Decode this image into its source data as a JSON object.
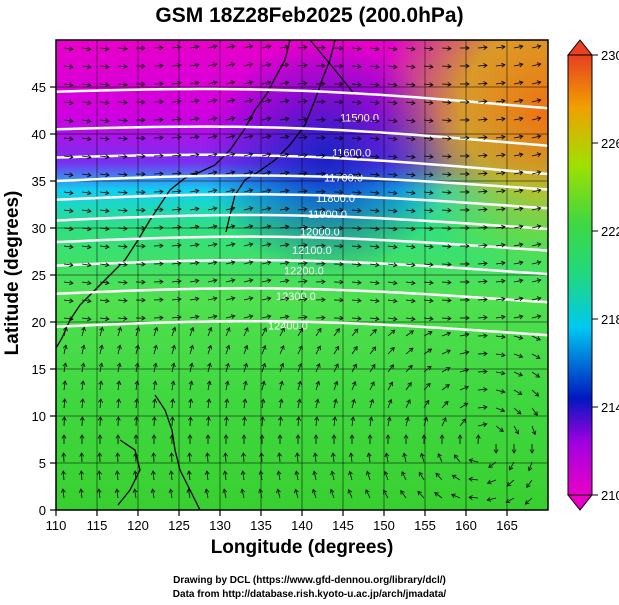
{
  "title": "GSM 18Z28Feb2025 (200.0hPa)",
  "x_axis": {
    "title": "Longitude (degrees)",
    "ticks": [
      110,
      115,
      120,
      125,
      130,
      135,
      140,
      145,
      150,
      155,
      160,
      165
    ],
    "range": [
      110,
      170
    ]
  },
  "y_axis": {
    "title": "Latitude  (degrees)",
    "ticks": [
      0,
      5,
      10,
      15,
      20,
      25,
      30,
      35,
      40,
      45
    ],
    "range": [
      0,
      50
    ]
  },
  "colorbar": {
    "ticks": [
      210,
      214,
      218,
      222,
      226,
      230
    ],
    "range": [
      210,
      230
    ],
    "colors": [
      "#e800c8",
      "#0018c0",
      "#00e0e0",
      "#20d040",
      "#90e000",
      "#f0a000",
      "#e84020"
    ]
  },
  "contours": [
    {
      "label": "11500.0",
      "lat_at_110": 44.5
    },
    {
      "label": "11600.0",
      "lat_at_110": 40.5
    },
    {
      "label": "11700.0",
      "lat_at_110": 37.5
    },
    {
      "label": "11800.0",
      "lat_at_110": 35.0
    },
    {
      "label": "11900.0",
      "lat_at_110": 33.0
    },
    {
      "label": "12000.0",
      "lat_at_110": 30.8
    },
    {
      "label": "12100.0",
      "lat_at_110": 28.5
    },
    {
      "label": "12200.0",
      "lat_at_110": 26.0
    },
    {
      "label": "12300.0",
      "lat_at_110": 23.0
    },
    {
      "label": "12400.0",
      "lat_at_110": 19.5
    }
  ],
  "credits": {
    "line1": "Drawing by DCL (https://www.gfd-dennou.org/library/dcl/)",
    "line2": "Data from http://database.rish.kyoto-u.ac.jp/arch/jmadata/"
  }
}
